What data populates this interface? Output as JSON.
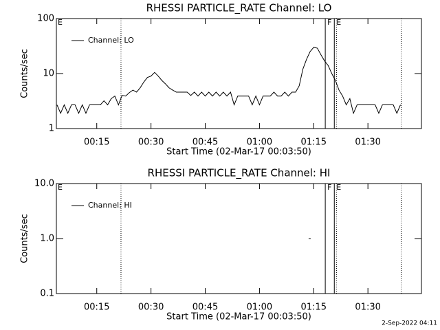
{
  "footer": "2-Sep-2022 04:11",
  "chart_data": [
    {
      "type": "line",
      "title": "RHESSI PARTICLE_RATE Channel: LO",
      "xlabel": "Start Time (02-Mar-17 00:03:50)",
      "ylabel": "Counts/sec",
      "x": [
        4,
        5,
        6,
        7,
        8,
        9,
        10,
        11,
        12,
        13,
        14,
        15,
        16,
        17,
        18,
        19,
        20,
        21,
        22,
        23,
        24,
        25,
        26,
        27,
        28,
        29,
        30,
        31,
        32,
        33,
        34,
        35,
        36,
        37,
        38,
        39,
        40,
        41,
        42,
        43,
        44,
        45,
        46,
        47,
        48,
        49,
        50,
        51,
        52,
        53,
        54,
        55,
        56,
        57,
        58,
        59,
        60,
        61,
        62,
        63,
        64,
        65,
        66,
        67,
        68,
        69,
        70,
        71,
        72,
        73,
        74,
        75,
        76,
        77,
        78,
        79,
        80,
        81,
        82,
        83,
        84,
        85,
        86,
        87,
        88,
        89,
        90,
        91,
        92,
        93,
        94,
        95,
        96,
        97,
        98,
        99
      ],
      "series": [
        {
          "name": "Channel: LO",
          "color": "#000000",
          "values": [
            2.7,
            1.9,
            2.7,
            1.9,
            2.7,
            2.7,
            1.9,
            2.7,
            1.9,
            2.7,
            2.7,
            2.7,
            2.7,
            3.2,
            2.7,
            3.5,
            3.9,
            2.7,
            4.0,
            3.9,
            4.5,
            5.0,
            4.6,
            5.5,
            7.0,
            8.5,
            9.0,
            10.5,
            9.0,
            7.5,
            6.5,
            5.5,
            5.0,
            4.6,
            4.6,
            4.6,
            4.6,
            4.0,
            4.6,
            3.9,
            4.6,
            3.9,
            4.6,
            3.9,
            4.6,
            3.9,
            4.6,
            3.9,
            4.6,
            2.7,
            3.9,
            3.9,
            3.9,
            3.9,
            2.7,
            3.9,
            2.7,
            3.9,
            3.9,
            3.9,
            4.6,
            3.9,
            3.9,
            4.6,
            3.9,
            4.6,
            4.6,
            6,
            12,
            18,
            25,
            30,
            29,
            22,
            17,
            14,
            10,
            7.5,
            5.0,
            3.9,
            2.7,
            3.5,
            1.9,
            2.7,
            2.7,
            2.7,
            2.7,
            2.7,
            2.7,
            1.9,
            2.7,
            2.7,
            2.7,
            2.7,
            1.9,
            2.7
          ]
        }
      ],
      "xlim": [
        3.83,
        104.8
      ],
      "xticks": [
        {
          "value": 15,
          "label": "00:15"
        },
        {
          "value": 30,
          "label": "00:30"
        },
        {
          "value": 45,
          "label": "00:45"
        },
        {
          "value": 60,
          "label": "01:00"
        },
        {
          "value": 75,
          "label": "01:15"
        },
        {
          "value": 90,
          "label": "01:30"
        }
      ],
      "ylim": [
        1,
        100
      ],
      "yticks": [
        1,
        10,
        100
      ],
      "log_y": true,
      "legend": "upper left",
      "markers": [
        {
          "x": 21.7,
          "style": "dotted"
        },
        {
          "x": 78.2,
          "style": "solid",
          "label": "F"
        },
        {
          "x": 80.7,
          "style": "solid",
          "label": "E"
        },
        {
          "x": 81.3,
          "style": "dotted"
        },
        {
          "x": 99.2,
          "style": "dotted"
        }
      ],
      "annotations": [
        {
          "text": "E",
          "x": 3.83
        }
      ]
    },
    {
      "type": "line",
      "title": "RHESSI PARTICLE_RATE Channel: HI",
      "xlabel": "Start Time (02-Mar-17 00:03:50)",
      "ylabel": "Counts/sec",
      "x": [
        73.6
      ],
      "series": [
        {
          "name": "Channel: HI",
          "color": "#000000",
          "values": [
            1.0
          ]
        }
      ],
      "xlim": [
        3.83,
        104.8
      ],
      "xticks": [
        {
          "value": 15,
          "label": "00:15"
        },
        {
          "value": 30,
          "label": "00:30"
        },
        {
          "value": 45,
          "label": "00:45"
        },
        {
          "value": 60,
          "label": "01:00"
        },
        {
          "value": 75,
          "label": "01:15"
        },
        {
          "value": 90,
          "label": "01:30"
        }
      ],
      "ylim": [
        0.1,
        10
      ],
      "yticks": [
        0.1,
        {
          "value": 1,
          "label": "1.0"
        },
        {
          "value": 10,
          "label": "10.0"
        }
      ],
      "log_y": true,
      "legend": "upper left",
      "markers": [
        {
          "x": 21.7,
          "style": "dotted"
        },
        {
          "x": 78.2,
          "style": "solid",
          "label": "F"
        },
        {
          "x": 80.7,
          "style": "solid",
          "label": "E"
        },
        {
          "x": 81.3,
          "style": "dotted"
        },
        {
          "x": 99.2,
          "style": "dotted"
        }
      ],
      "annotations": [
        {
          "text": "E",
          "x": 3.83
        }
      ]
    }
  ]
}
